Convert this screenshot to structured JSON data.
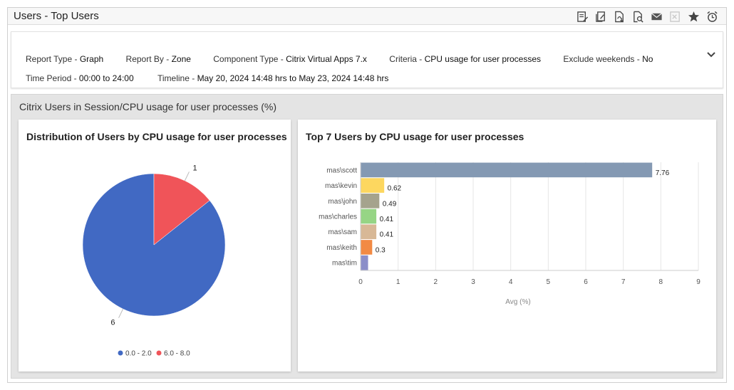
{
  "window": {
    "title": "Users - Top Users"
  },
  "toolbar": [
    "edit-report-icon",
    "compare-icon",
    "export-pdf-icon",
    "search-icon",
    "email-icon",
    "export-excel-icon",
    "favorite-star-icon",
    "schedule-alarm-icon"
  ],
  "filters": {
    "report_type": {
      "label": "Report Type - ",
      "value": "Graph"
    },
    "report_by": {
      "label": "Report By - ",
      "value": "Zone"
    },
    "component_type": {
      "label": "Component Type - ",
      "value": "Citrix Virtual Apps 7.x"
    },
    "criteria": {
      "label": "Criteria - ",
      "value": "CPU usage for user processes"
    },
    "exclude_weekends": {
      "label": "Exclude weekends - ",
      "value": "No"
    },
    "time_period": {
      "label": "Time Period - ",
      "value": "00:00 to 24:00"
    },
    "timeline": {
      "label": "Timeline - ",
      "value": "May 20, 2024 14:48 hrs to May 23, 2024 14:48 hrs"
    }
  },
  "section": {
    "title": "Citrix Users in Session/CPU usage for user processes (%)"
  },
  "chart_data": [
    {
      "type": "pie",
      "title": "Distribution of Users by CPU usage for user processes",
      "slices": [
        {
          "name": "0.0 - 2.0",
          "value": 6,
          "color": "#4169c3"
        },
        {
          "name": "6.0 - 8.0",
          "value": 1,
          "color": "#f05459"
        }
      ],
      "legend": "bottom"
    },
    {
      "type": "bar",
      "orientation": "horizontal",
      "title": "Top 7 Users by CPU usage for user processes",
      "categories": [
        "mas\\scott",
        "mas\\kevin",
        "mas\\john",
        "mas\\charles",
        "mas\\sam",
        "mas\\keith",
        "mas\\tim"
      ],
      "values": [
        7.76,
        0.62,
        0.49,
        0.41,
        0.41,
        0.3,
        null
      ],
      "colors": [
        "#8499b3",
        "#fdd75f",
        "#a5a38d",
        "#96d585",
        "#d8b896",
        "#f28a44",
        "#8b8ec9"
      ],
      "xlabel": "Avg (%)",
      "xlim": [
        0,
        9
      ],
      "xticks": [
        0,
        1,
        2,
        3,
        4,
        5,
        6,
        7,
        8,
        9
      ],
      "grid": true
    }
  ]
}
